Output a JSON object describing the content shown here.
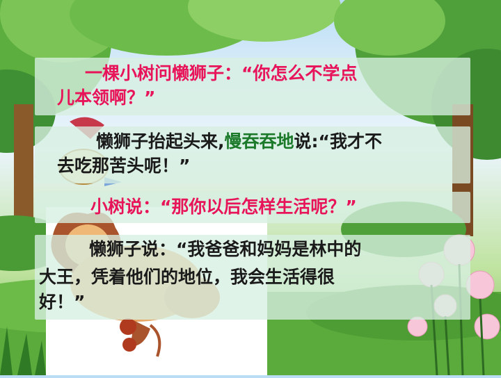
{
  "panel1": {
    "line1": "一棵小树问懒狮子：“你怎么不学点",
    "line2": "儿本领啊？”"
  },
  "panel2": {
    "part1": "懒狮子抬起头来,",
    "part2": "慢吞吞地",
    "part3": "说:“我才不",
    "line2": "去吃那苦头呢！”"
  },
  "panel3": {
    "line1": "小树说：“那你以后怎样生活呢？”"
  },
  "panel4": {
    "line1": "懒狮子说：“我爸爸和妈妈是林中的",
    "line2": "大王，凭着他们的地位，我会生活得很",
    "line3": "好！”"
  },
  "colors": {
    "pink": "#e8145a",
    "green": "#1b7a2a",
    "panel": "#d7f0e1"
  }
}
